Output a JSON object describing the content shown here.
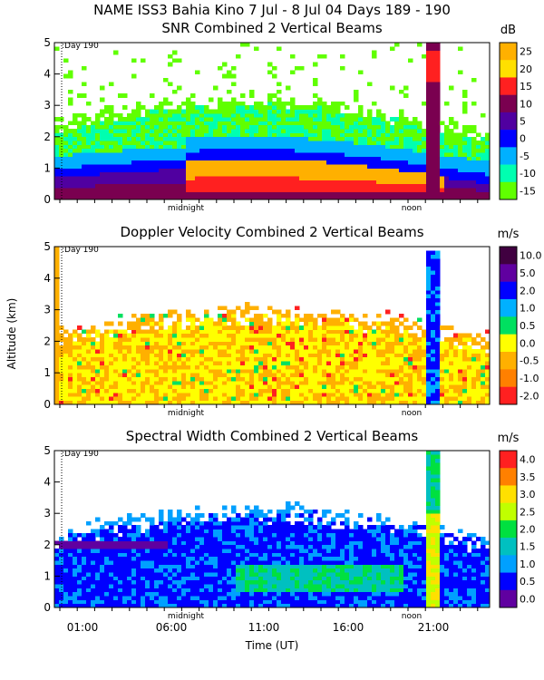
{
  "header": {
    "title": "NAME ISS3 Bahia Kino    7 Jul -  8 Jul 04 Days 189 - 190"
  },
  "axes": {
    "ylabel": "Altitude (km)",
    "xlabel": "Time (UT)",
    "x_ticks": [
      "01:00",
      "06:00",
      "11:00",
      "16:00",
      "21:00"
    ],
    "midnight_label": "midnight",
    "noon_label": "noon",
    "day_marker": ":Day 190"
  },
  "chart_data": [
    {
      "type": "heatmap",
      "title": "SNR Combined 2 Vertical Beams",
      "unit": "dB",
      "xlabel": "Time (UT)",
      "ylabel": "Altitude (km)",
      "ylim": [
        0,
        5
      ],
      "y_ticks": [
        "0",
        "1",
        "2",
        "3",
        "4",
        "5"
      ],
      "colorbar_labels": [
        "25",
        "20",
        "15",
        "10",
        "5",
        "0",
        "-5",
        "-10",
        "-15"
      ],
      "colors": [
        "#ffb000",
        "#ffe000",
        "#ff2020",
        "#7a0050",
        "#5000a0",
        "#0000ff",
        "#00b0ff",
        "#00ffb0",
        "#60ff00"
      ]
    },
    {
      "type": "heatmap",
      "title": "Doppler Velocity Combined 2 Vertical Beams",
      "unit": "m/s",
      "xlabel": "Time (UT)",
      "ylabel": "Altitude (km)",
      "ylim": [
        0,
        5
      ],
      "y_ticks": [
        "0",
        "1",
        "2",
        "3",
        "4",
        "5"
      ],
      "colorbar_labels": [
        "10.0",
        "5.0",
        "2.0",
        "1.0",
        "0.5",
        "0.0",
        "-0.5",
        "-1.0",
        "-2.0"
      ],
      "colors": [
        "#400040",
        "#6000a0",
        "#0000ff",
        "#00b0ff",
        "#00e060",
        "#ffff00",
        "#ffb000",
        "#ff8000",
        "#ff2020"
      ]
    },
    {
      "type": "heatmap",
      "title": "Spectral Width Combined 2 Vertical Beams",
      "unit": "m/s",
      "xlabel": "Time (UT)",
      "ylabel": "Altitude (km)",
      "ylim": [
        0,
        5
      ],
      "y_ticks": [
        "0",
        "1",
        "2",
        "3",
        "4",
        "5"
      ],
      "colorbar_labels": [
        "4.0",
        "3.5",
        "3.0",
        "2.5",
        "2.0",
        "1.5",
        "1.0",
        "0.5",
        "0.0"
      ],
      "colors": [
        "#ff2020",
        "#ff8000",
        "#ffe000",
        "#c0ff00",
        "#00e040",
        "#00c0c0",
        "#00a0ff",
        "#0000ff",
        "#6000a0"
      ]
    }
  ]
}
